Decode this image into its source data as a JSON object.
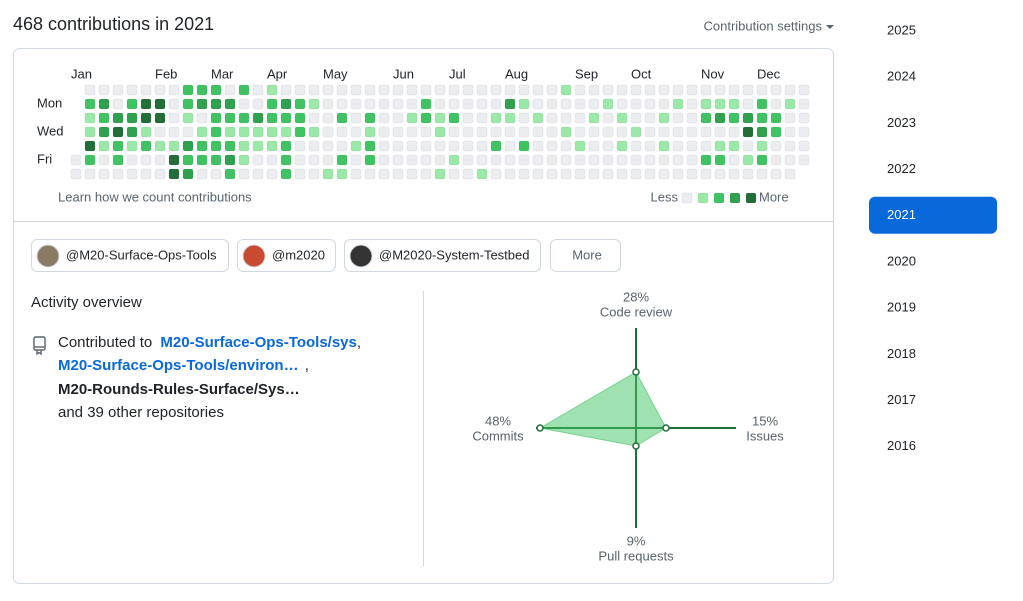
{
  "header": {
    "title": "468 contributions in 2021",
    "settings": "Contribution settings"
  },
  "calendar": {
    "months": [
      "Jan",
      "Feb",
      "Mar",
      "Apr",
      "May",
      "Jun",
      "Jul",
      "Aug",
      "Sep",
      "Oct",
      "Nov",
      "Dec"
    ],
    "day_labels": [
      "Mon",
      "Wed",
      "Fri"
    ],
    "level_colors": [
      "#ebedf0",
      "#9be9a8",
      "#40c463",
      "#30a14e",
      "#216e39"
    ],
    "levels": [
      [
        null,
        0,
        0,
        0,
        0,
        0,
        0,
        0,
        2,
        2,
        2,
        0,
        2,
        0,
        1,
        0,
        0,
        0,
        0,
        0,
        0,
        0,
        0,
        0,
        0,
        0,
        0,
        0,
        0,
        0,
        0,
        0,
        0,
        0,
        0,
        1,
        0,
        0,
        0,
        0,
        0,
        0,
        0,
        0,
        0,
        0,
        0,
        0,
        0,
        0,
        0,
        0,
        0
      ],
      [
        null,
        2,
        3,
        0,
        2,
        4,
        4,
        0,
        2,
        3,
        3,
        3,
        0,
        0,
        2,
        3,
        2,
        1,
        0,
        0,
        0,
        0,
        0,
        0,
        0,
        2,
        0,
        0,
        0,
        0,
        0,
        3,
        1,
        0,
        0,
        0,
        0,
        0,
        1,
        0,
        0,
        0,
        0,
        1,
        0,
        1,
        1,
        1,
        0,
        2,
        0,
        1,
        0
      ],
      [
        null,
        1,
        2,
        3,
        3,
        4,
        4,
        0,
        1,
        0,
        2,
        2,
        2,
        3,
        2,
        2,
        2,
        0,
        0,
        2,
        0,
        2,
        0,
        0,
        1,
        2,
        1,
        2,
        0,
        0,
        1,
        1,
        0,
        1,
        0,
        0,
        0,
        1,
        0,
        1,
        0,
        0,
        1,
        0,
        0,
        2,
        3,
        2,
        3,
        2,
        2,
        0,
        0
      ],
      [
        null,
        1,
        3,
        4,
        3,
        1,
        0,
        0,
        0,
        1,
        2,
        1,
        1,
        1,
        1,
        1,
        2,
        1,
        0,
        0,
        0,
        1,
        0,
        0,
        0,
        0,
        1,
        0,
        0,
        0,
        0,
        0,
        0,
        0,
        0,
        1,
        0,
        0,
        0,
        0,
        1,
        0,
        0,
        0,
        0,
        0,
        0,
        0,
        4,
        3,
        2,
        0,
        0
      ],
      [
        null,
        4,
        1,
        2,
        1,
        2,
        1,
        1,
        3,
        2,
        2,
        2,
        1,
        1,
        1,
        2,
        0,
        0,
        0,
        0,
        1,
        2,
        0,
        0,
        0,
        0,
        0,
        0,
        0,
        0,
        2,
        0,
        2,
        0,
        0,
        0,
        1,
        0,
        0,
        1,
        0,
        0,
        1,
        0,
        0,
        0,
        1,
        1,
        0,
        1,
        0,
        0,
        0
      ],
      [
        0,
        2,
        0,
        2,
        0,
        0,
        0,
        4,
        2,
        2,
        2,
        3,
        1,
        0,
        0,
        2,
        0,
        0,
        0,
        2,
        0,
        2,
        0,
        0,
        0,
        0,
        0,
        1,
        0,
        0,
        0,
        0,
        0,
        0,
        0,
        0,
        0,
        0,
        0,
        0,
        0,
        0,
        0,
        0,
        0,
        2,
        2,
        0,
        1,
        2,
        0,
        0,
        0
      ],
      [
        0,
        0,
        0,
        0,
        0,
        0,
        0,
        4,
        3,
        0,
        0,
        2,
        0,
        0,
        0,
        2,
        0,
        0,
        1,
        1,
        0,
        0,
        0,
        0,
        0,
        0,
        1,
        0,
        0,
        1,
        0,
        0,
        0,
        0,
        0,
        0,
        0,
        0,
        0,
        0,
        0,
        0,
        0,
        0,
        0,
        0,
        0,
        0,
        0,
        0,
        0,
        0,
        null
      ]
    ],
    "footer_link": "Learn how we count contributions",
    "legend_less": "Less",
    "legend_more": "More"
  },
  "organizations": [
    "@M20-Surface-Ops-Tools",
    "@m2020",
    "@M2020-System-Testbed"
  ],
  "more_button": "More",
  "activity": {
    "title": "Activity overview",
    "contributed_to": "Contributed to",
    "repos": [
      "M20-Surface-Ops-Tools/sys",
      "M20-Surface-Ops-Tools/environ…",
      "M20-Rounds-Rules-Surface/Sys…"
    ],
    "separators": [
      ",",
      " ,"
    ],
    "other": "and 39 other repositories"
  },
  "radar": {
    "type": "radar",
    "color": "#216e39",
    "fill": "#40c463",
    "axes": [
      {
        "label": "Code review",
        "value": 28,
        "value_label": "28%"
      },
      {
        "label": "Issues",
        "value": 15,
        "value_label": "15%"
      },
      {
        "label": "Pull requests",
        "value": 9,
        "value_label": "9%"
      },
      {
        "label": "Commits",
        "value": 48,
        "value_label": "48%"
      }
    ]
  },
  "years": [
    "2025",
    "2024",
    "2023",
    "2022",
    "2021",
    "2020",
    "2019",
    "2018",
    "2017",
    "2016"
  ],
  "selected_year": "2021"
}
